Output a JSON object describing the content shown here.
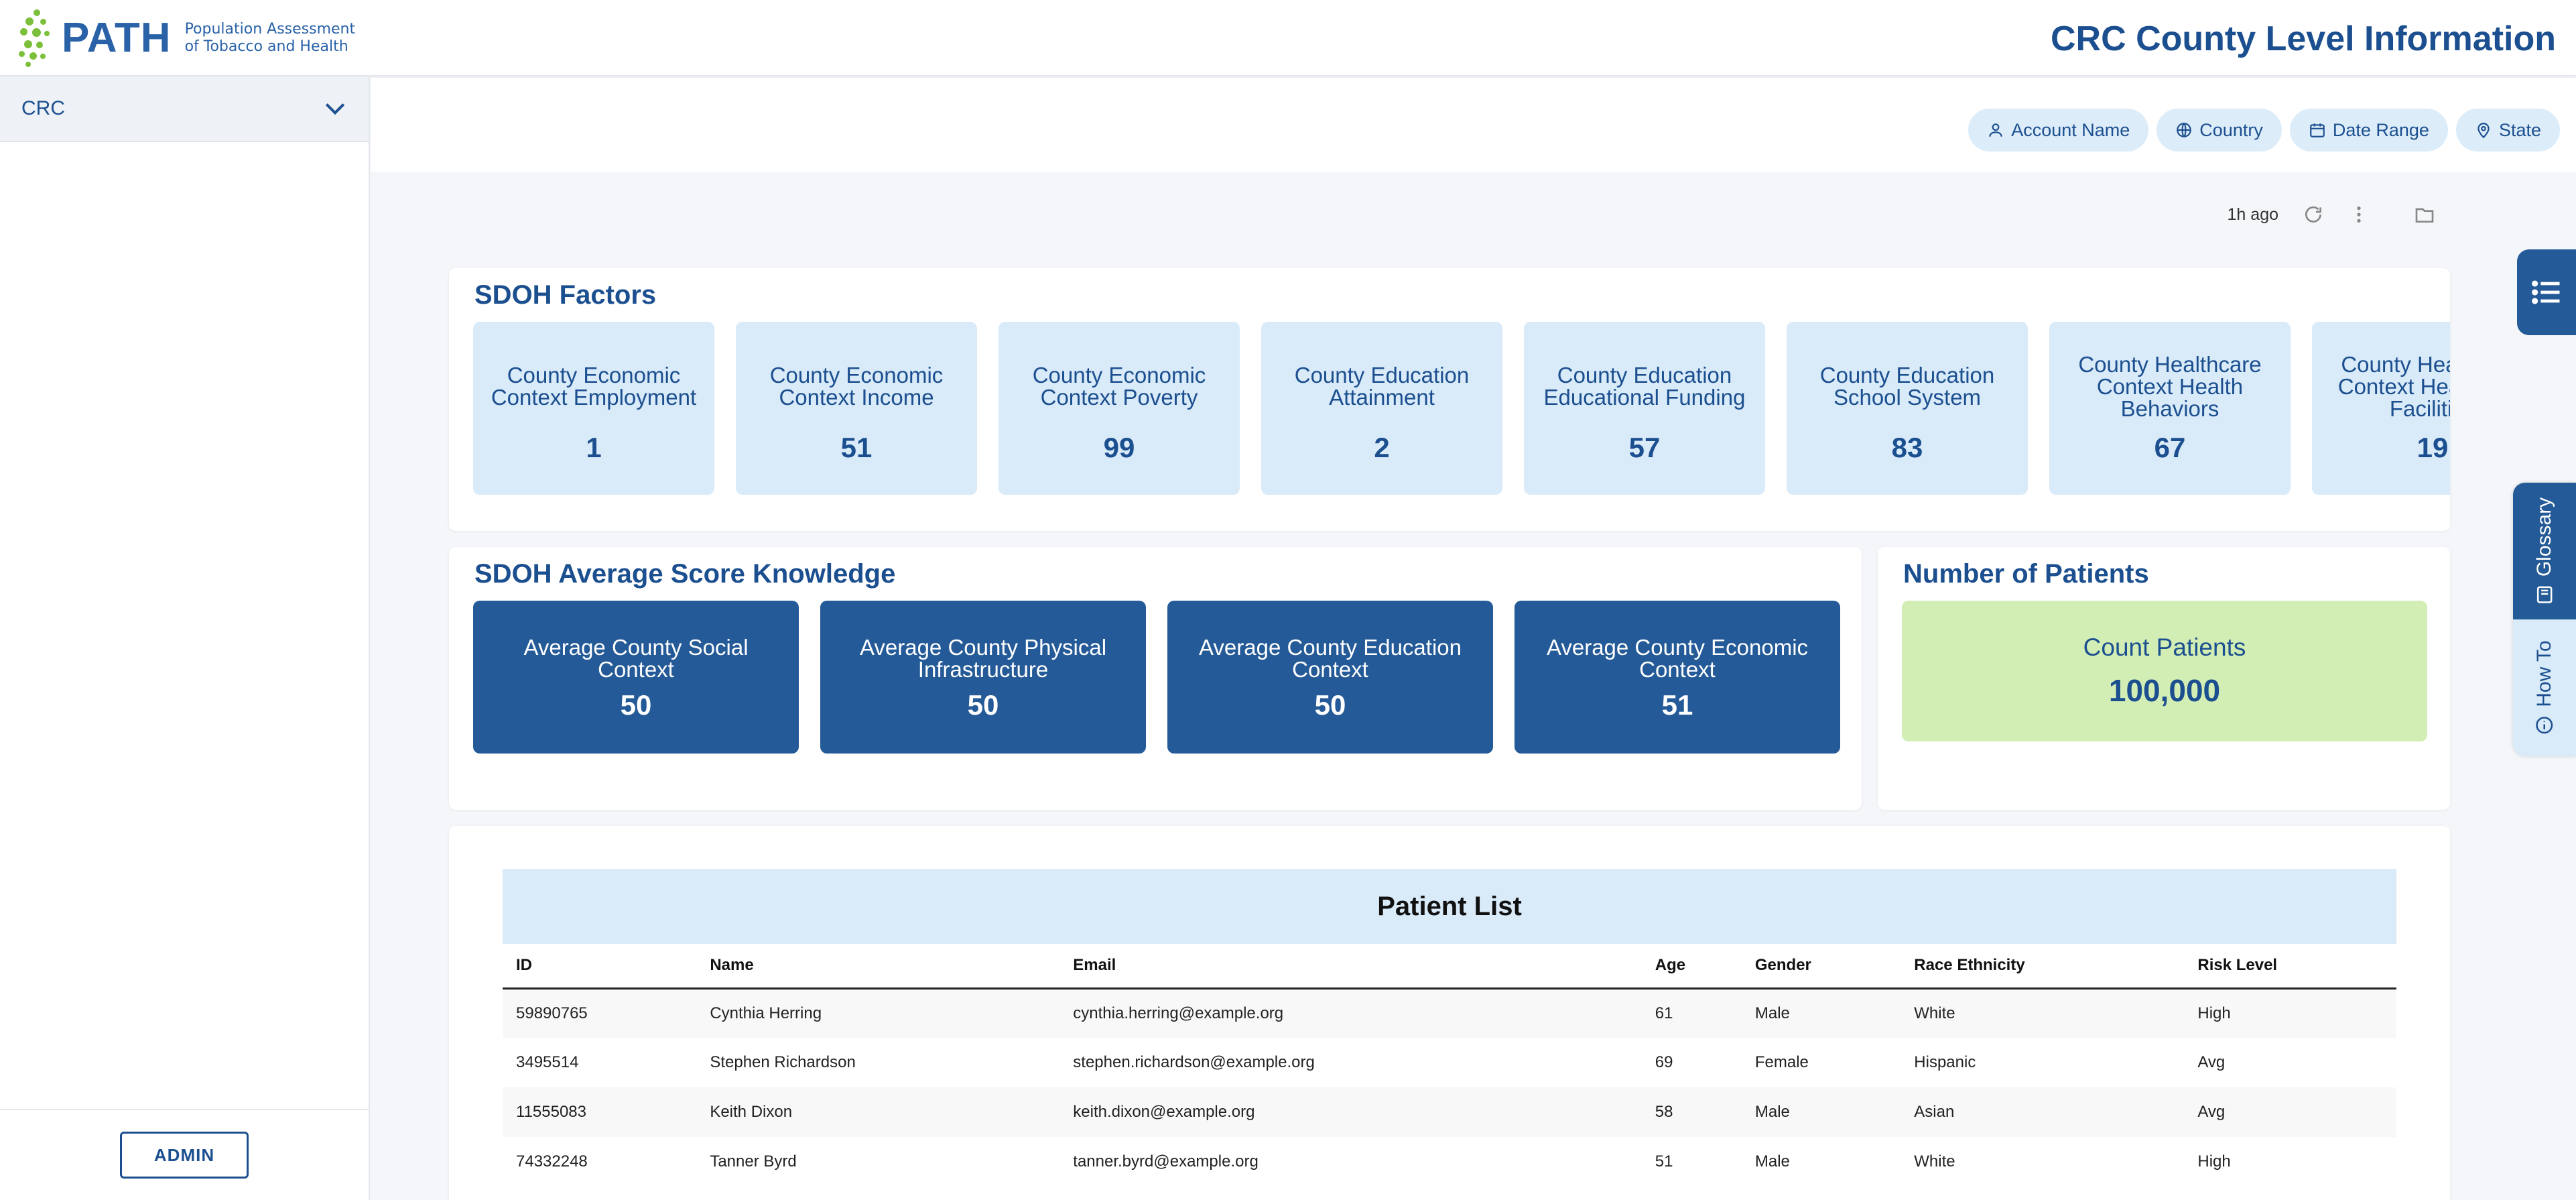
{
  "header": {
    "logo_word": "PATH",
    "logo_sub_line1": "Population Assessment",
    "logo_sub_line2": "of Tobacco and Health",
    "title": "CRC County Level Information"
  },
  "sidebar": {
    "items": [
      {
        "label": "CRC"
      }
    ],
    "admin_label": "ADMIN"
  },
  "filters": [
    {
      "label": "Account Name",
      "icon": "user-icon"
    },
    {
      "label": "Country",
      "icon": "globe-icon"
    },
    {
      "label": "Date Range",
      "icon": "calendar-icon"
    },
    {
      "label": "State",
      "icon": "map-pin-icon"
    }
  ],
  "toolbar": {
    "updated": "1h ago"
  },
  "sdoh_factors": {
    "title": "SDOH Factors",
    "tiles": [
      {
        "label": "County Economic Context Employment",
        "value": "1"
      },
      {
        "label": "County Economic Context Income",
        "value": "51"
      },
      {
        "label": "County Economic Context Poverty",
        "value": "99"
      },
      {
        "label": "County Education Attainment",
        "value": "2"
      },
      {
        "label": "County Education Educational Funding",
        "value": "57"
      },
      {
        "label": "County Education School System",
        "value": "83"
      },
      {
        "label": "County Healthcare Context Health Behaviors",
        "value": "67"
      },
      {
        "label": "County Healthcare Context Healthcare Facilities",
        "value": "19"
      }
    ]
  },
  "sdoh_average": {
    "title": "SDOH Average Score Knowledge",
    "tiles": [
      {
        "label": "Average County Social Context",
        "value": "50"
      },
      {
        "label": "Average County Physical Infrastructure",
        "value": "50"
      },
      {
        "label": "Average County Education Context",
        "value": "50"
      },
      {
        "label": "Average County Economic Context",
        "value": "51"
      }
    ]
  },
  "patients": {
    "title": "Number of Patients",
    "label": "Count Patients",
    "value": "100,000"
  },
  "patient_list": {
    "title": "Patient List",
    "columns": [
      "ID",
      "Name",
      "Email",
      "Age",
      "Gender",
      "Race Ethnicity",
      "Risk Level"
    ],
    "rows": [
      [
        "59890765",
        "Cynthia Herring",
        "cynthia.herring@example.org",
        "61",
        "Male",
        "White",
        "High"
      ],
      [
        "3495514",
        "Stephen Richardson",
        "stephen.richardson@example.org",
        "69",
        "Female",
        "Hispanic",
        "Avg"
      ],
      [
        "11555083",
        "Keith Dixon",
        "keith.dixon@example.org",
        "58",
        "Male",
        "Asian",
        "Avg"
      ],
      [
        "74332248",
        "Tanner Byrd",
        "tanner.byrd@example.org",
        "51",
        "Male",
        "White",
        "High"
      ]
    ]
  },
  "side_tabs": {
    "glossary": "Glossary",
    "how_to": "How To"
  },
  "colors": {
    "primary": "#1b4f8f",
    "tile_light": "#d9eaf9",
    "tile_dark": "#245a97",
    "tile_green": "#d3eeb4",
    "logo_green": "#7bbf3a"
  }
}
